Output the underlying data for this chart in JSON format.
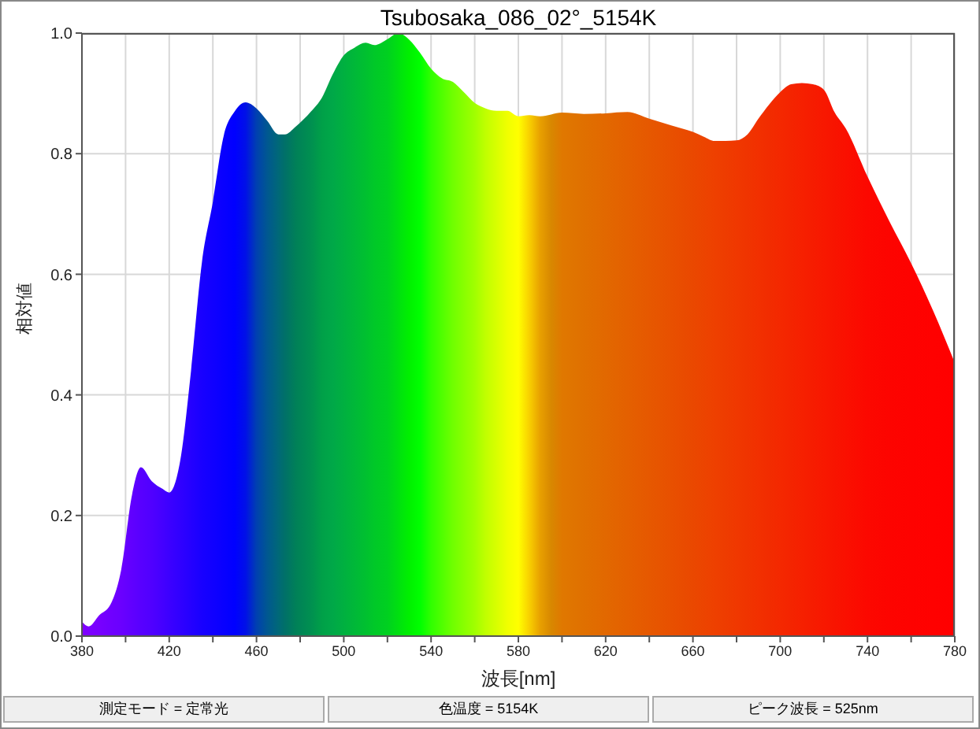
{
  "chart_data": {
    "type": "area",
    "title": "Tsubosaka_086_02°_5154K",
    "xlabel": "波長[nm]",
    "ylabel": "相対値",
    "x": [
      380,
      383,
      388,
      393,
      398,
      403,
      407,
      412,
      417,
      420,
      425,
      430,
      435,
      440,
      445,
      450,
      455,
      460,
      465,
      470,
      473,
      478,
      485,
      490,
      495,
      500,
      505,
      510,
      514,
      520,
      525,
      530,
      535,
      540,
      545,
      550,
      555,
      560,
      565,
      570,
      575,
      580,
      585,
      590,
      595,
      600,
      610,
      620,
      630,
      640,
      650,
      660,
      665,
      670,
      675,
      680,
      685,
      690,
      695,
      700,
      705,
      710,
      715,
      720,
      725,
      730,
      740,
      750,
      760,
      770,
      780
    ],
    "series": [
      {
        "values": [
          0.024,
          0.016,
          0.035,
          0.052,
          0.11,
          0.235,
          0.28,
          0.257,
          0.244,
          0.238,
          0.29,
          0.44,
          0.62,
          0.72,
          0.83,
          0.87,
          0.885,
          0.875,
          0.854,
          0.832,
          0.832,
          0.845,
          0.87,
          0.893,
          0.932,
          0.963,
          0.976,
          0.984,
          0.98,
          0.99,
          1.0,
          0.989,
          0.967,
          0.941,
          0.925,
          0.919,
          0.902,
          0.884,
          0.875,
          0.871,
          0.871,
          0.862,
          0.864,
          0.862,
          0.865,
          0.868,
          0.866,
          0.867,
          0.869,
          0.858,
          0.847,
          0.836,
          0.828,
          0.821,
          0.821,
          0.822,
          0.832,
          0.858,
          0.882,
          0.902,
          0.915,
          0.917,
          0.915,
          0.906,
          0.868,
          0.842,
          0.762,
          0.688,
          0.618,
          0.54,
          0.453
        ],
        "colors": [
          "#8000ff",
          "#7d00ff",
          "#7800ff",
          "#7000ff",
          "#6a00ff",
          "#6000ff",
          "#5800ff",
          "#5000ff",
          "#4400ff",
          "#3c00ff",
          "#3000ff",
          "#2400ff",
          "#1800ff",
          "#1000ff",
          "#0800ff",
          "#0000ff",
          "#0010e8",
          "#0040b0",
          "#005890",
          "#006878",
          "#007068",
          "#008058",
          "#009050",
          "#00a048",
          "#00a848",
          "#00b040",
          "#00b838",
          "#00c030",
          "#00c828",
          "#00d020",
          "#00e010",
          "#00f000",
          "#00ff00",
          "#30ff00",
          "#50ff00",
          "#70ff00",
          "#88ff00",
          "#a0ff00",
          "#c0ff00",
          "#d8ff00",
          "#f0ff00",
          "#ffff00",
          "#f8d000",
          "#e8a000",
          "#d88800",
          "#e07800",
          "#e07000",
          "#e26800",
          "#e46000",
          "#e65800",
          "#e85000",
          "#ea4800",
          "#ec4400",
          "#ee4000",
          "#ee3c00",
          "#f03800",
          "#f03400",
          "#f23000",
          "#f22c00",
          "#f42800",
          "#f42400",
          "#f62000",
          "#f61c00",
          "#f81800",
          "#f81400",
          "#fa1000",
          "#fc0800",
          "#fd0400",
          "#fe0200",
          "#ff0100",
          "#ff0000"
        ]
      }
    ],
    "xlim": [
      380,
      780
    ],
    "xticks": [
      380,
      {
        "value": 400,
        "label": null
      },
      420,
      {
        "value": 440,
        "label": null
      },
      460,
      {
        "value": 480,
        "label": null
      },
      500,
      {
        "value": 520,
        "label": null
      },
      540,
      {
        "value": 560,
        "label": null
      },
      580,
      {
        "value": 600,
        "label": null
      },
      620,
      {
        "value": 640,
        "label": null
      },
      660,
      {
        "value": 680,
        "label": null
      },
      700,
      {
        "value": 720,
        "label": null
      },
      740,
      {
        "value": 760,
        "label": null
      },
      780
    ],
    "ylim": [
      0,
      1.0
    ],
    "yticks": [
      {
        "value": 0,
        "label": "0.0"
      },
      0.2,
      0.4,
      0.6,
      0.8,
      {
        "value": 1,
        "label": "1.0"
      }
    ],
    "grid": true,
    "annotations": [
      "測定モード = 定常光",
      "色温度 = 5154K",
      "ピーク波長 = 525nm"
    ]
  }
}
